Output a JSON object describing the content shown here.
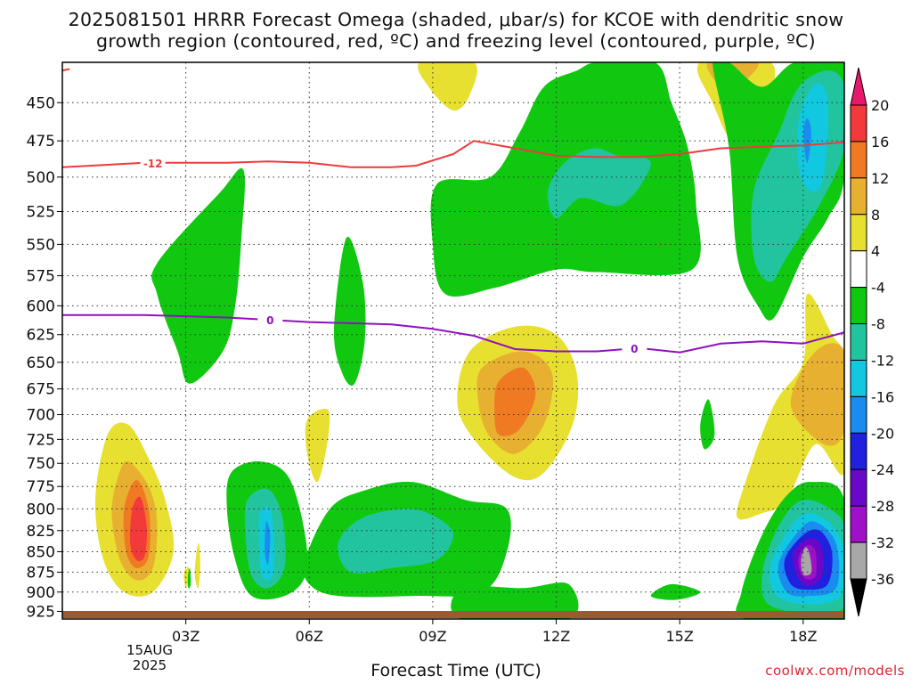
{
  "title_line1": "2025081501 HRRR Forecast Omega (shaded, μbar/s) for KCOE with dendritic snow",
  "title_line2": "growth region (contoured, red, ºC) and freezing level (contoured, purple, ºC)",
  "xlabel": "Forecast Time (UTC)",
  "credit": "coolwx.com/models",
  "date_label": [
    "15AUG",
    "2025"
  ],
  "chart_data": {
    "type": "contour",
    "x_ticks": [
      {
        "t": 3,
        "label": "03Z"
      },
      {
        "t": 6,
        "label": "06Z"
      },
      {
        "t": 9,
        "label": "09Z"
      },
      {
        "t": 12,
        "label": "12Z"
      },
      {
        "t": 15,
        "label": "15Z"
      },
      {
        "t": 18,
        "label": "18Z"
      }
    ],
    "xlim": [
      0,
      19
    ],
    "y_ticks": [
      450,
      475,
      500,
      525,
      550,
      575,
      600,
      625,
      650,
      675,
      700,
      725,
      750,
      775,
      800,
      825,
      850,
      875,
      900,
      925
    ],
    "ylim": [
      425,
      935
    ],
    "y_scale": "log",
    "colorbar": {
      "labels": [
        20,
        16,
        12,
        8,
        4,
        -4,
        -8,
        -12,
        -16,
        -20,
        -24,
        -28,
        -32,
        -36
      ],
      "colors": [
        "#e8186a",
        "#f23a3a",
        "#f07a22",
        "#e8b030",
        "#e8e030",
        "#ffffff",
        "#11c811",
        "#22c4a0",
        "#11c8e0",
        "#1a8cf0",
        "#2020e0",
        "#6a08c8",
        "#a010c8",
        "#a8a8a8",
        "#000000"
      ]
    },
    "contours": [
      {
        "name": "-12",
        "color": "#ee3a3a",
        "points": [
          [
            0,
            493
          ],
          [
            2,
            490
          ],
          [
            4,
            490
          ],
          [
            5,
            489
          ],
          [
            6,
            490
          ],
          [
            7,
            493
          ],
          [
            8,
            493
          ],
          [
            8.6,
            492
          ],
          [
            9.5,
            484
          ],
          [
            10,
            475
          ],
          [
            11,
            480
          ],
          [
            12,
            485
          ],
          [
            13,
            486
          ],
          [
            14,
            486
          ],
          [
            15,
            484
          ],
          [
            16,
            480
          ],
          [
            17,
            479
          ],
          [
            18,
            478
          ],
          [
            19,
            476
          ]
        ],
        "label_t": 2.2
      },
      {
        "name": "0",
        "color": "#9010c0",
        "points": [
          [
            0,
            608
          ],
          [
            2,
            608
          ],
          [
            4,
            610
          ],
          [
            6,
            614
          ],
          [
            8,
            616
          ],
          [
            9,
            620
          ],
          [
            10,
            626
          ],
          [
            11,
            638
          ],
          [
            12,
            640
          ],
          [
            13,
            640
          ],
          [
            14,
            637
          ],
          [
            15,
            641
          ],
          [
            16,
            633
          ],
          [
            17,
            631
          ],
          [
            18,
            633
          ],
          [
            19,
            623
          ]
        ],
        "label_t": 5.05,
        "label_t2": 13.9
      }
    ],
    "omega_regions": [
      {
        "value": 4,
        "kind": "ascent"
      },
      {
        "value": 8,
        "kind": "ascent"
      },
      {
        "value": 12,
        "kind": "ascent"
      },
      {
        "value": -4,
        "kind": "descent"
      },
      {
        "value": -8,
        "kind": "descent"
      },
      {
        "value": -12,
        "kind": "descent"
      },
      {
        "value": -16,
        "kind": "descent"
      },
      {
        "value": -20,
        "kind": "descent"
      },
      {
        "value": -24,
        "kind": "descent"
      },
      {
        "value": -28,
        "kind": "descent"
      },
      {
        "value": -32,
        "kind": "descent"
      }
    ]
  }
}
